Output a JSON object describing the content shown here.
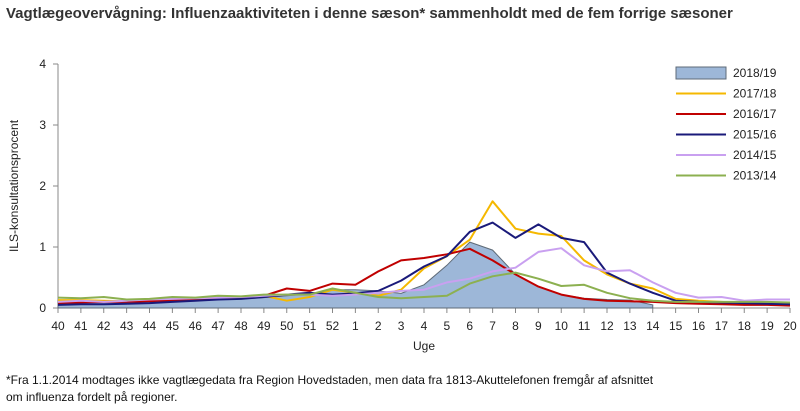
{
  "title": "Vagtlægeovervågning: Influenzaaktiviteten i denne sæson* sammenholdt med de fem forrige sæsoner",
  "footnote_line1": "*Fra 1.1.2014 modtages ikke vagtlægedata fra Region Hovedstaden, men data fra 1813-Akuttelefonen fremgår af afsnittet",
  "footnote_line2": "om influenza fordelt på regioner.",
  "chart_data": {
    "type": "line",
    "title": "Vagtlægeovervågning: Influenzaaktiviteten i denne sæson* sammenholdt med de fem forrige sæsoner",
    "xlabel": "Uge",
    "ylabel": "ILS-konsultationsprocent",
    "ylim": [
      0,
      4
    ],
    "yticks": [
      0,
      1,
      2,
      3,
      4
    ],
    "grid": false,
    "legend_position": "top-right",
    "categories": [
      "40",
      "41",
      "42",
      "43",
      "44",
      "45",
      "46",
      "47",
      "48",
      "49",
      "50",
      "51",
      "52",
      "1",
      "2",
      "3",
      "4",
      "5",
      "6",
      "7",
      "8",
      "9",
      "10",
      "11",
      "12",
      "13",
      "14",
      "15",
      "16",
      "17",
      "18",
      "19",
      "20"
    ],
    "series": [
      {
        "name": "2018/19",
        "kind": "area",
        "color": "#9db7d8",
        "stroke": "#5f6b78",
        "values": [
          0.13,
          0.12,
          0.11,
          0.1,
          0.11,
          0.12,
          0.13,
          0.14,
          0.15,
          0.17,
          0.2,
          0.23,
          0.3,
          0.3,
          0.28,
          0.24,
          0.38,
          0.7,
          1.08,
          0.95,
          0.55,
          0.35,
          0.22,
          0.16,
          0.14,
          0.13,
          0.05,
          null,
          null,
          null,
          null,
          null,
          null
        ]
      },
      {
        "name": "2017/18",
        "kind": "line",
        "color": "#f5b800",
        "values": [
          0.13,
          0.13,
          0.12,
          0.11,
          0.12,
          0.14,
          0.16,
          0.17,
          0.18,
          0.2,
          0.12,
          0.18,
          0.3,
          0.25,
          0.2,
          0.3,
          0.65,
          0.85,
          1.12,
          1.75,
          1.3,
          1.22,
          1.18,
          0.78,
          0.55,
          0.4,
          0.32,
          0.15,
          0.12,
          0.1,
          0.08,
          0.07,
          0.06
        ]
      },
      {
        "name": "2016/17",
        "kind": "line",
        "color": "#c00000",
        "values": [
          0.08,
          0.09,
          0.1,
          0.1,
          0.11,
          0.13,
          0.14,
          0.15,
          0.16,
          0.2,
          0.32,
          0.28,
          0.4,
          0.38,
          0.6,
          0.78,
          0.82,
          0.88,
          0.97,
          0.78,
          0.55,
          0.35,
          0.22,
          0.15,
          0.12,
          0.11,
          0.1,
          0.08,
          0.07,
          0.06,
          0.05,
          0.05,
          0.04
        ]
      },
      {
        "name": "2015/16",
        "kind": "line",
        "color": "#1a1a7a",
        "values": [
          0.05,
          0.06,
          0.06,
          0.07,
          0.08,
          0.1,
          0.12,
          0.14,
          0.15,
          0.18,
          0.22,
          0.25,
          0.22,
          0.24,
          0.28,
          0.45,
          0.68,
          0.85,
          1.25,
          1.4,
          1.15,
          1.37,
          1.15,
          1.08,
          0.58,
          0.4,
          0.25,
          0.12,
          0.1,
          0.09,
          0.08,
          0.07,
          0.06
        ]
      },
      {
        "name": "2014/15",
        "kind": "line",
        "color": "#c9a0f0",
        "values": [
          0.1,
          0.12,
          0.1,
          0.12,
          0.14,
          0.15,
          0.16,
          0.17,
          0.18,
          0.2,
          0.22,
          0.22,
          0.2,
          0.22,
          0.25,
          0.28,
          0.3,
          0.42,
          0.48,
          0.6,
          0.66,
          0.92,
          0.98,
          0.7,
          0.6,
          0.62,
          0.42,
          0.25,
          0.17,
          0.18,
          0.12,
          0.14,
          0.14
        ]
      },
      {
        "name": "2013/14",
        "kind": "line",
        "color": "#8cb050",
        "values": [
          0.17,
          0.16,
          0.18,
          0.14,
          0.15,
          0.18,
          0.17,
          0.2,
          0.19,
          0.22,
          0.22,
          0.22,
          0.32,
          0.25,
          0.18,
          0.16,
          0.18,
          0.2,
          0.4,
          0.52,
          0.58,
          0.48,
          0.36,
          0.38,
          0.25,
          0.16,
          0.12,
          0.1,
          0.1,
          0.1,
          0.1,
          0.1,
          0.09
        ]
      }
    ]
  }
}
